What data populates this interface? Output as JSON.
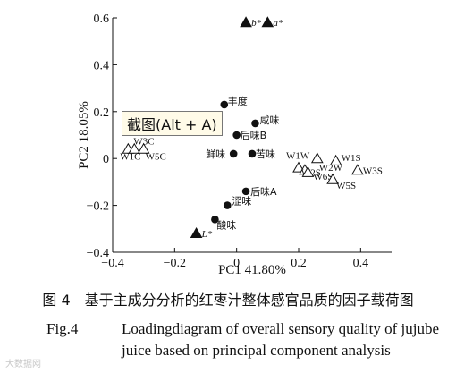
{
  "chart_data": {
    "type": "scatter",
    "title": "",
    "xlabel": "PC1 41.80%",
    "ylabel": "PC2 18.05%",
    "xlim": [
      -0.4,
      0.5
    ],
    "ylim": [
      -0.4,
      0.6
    ],
    "xticks": [
      -0.4,
      -0.2,
      0,
      0.2,
      0.4
    ],
    "xtick_labels": [
      "−0.4",
      "−0.2",
      "0",
      "0.2",
      "0.4"
    ],
    "yticks": [
      -0.4,
      -0.2,
      0,
      0.2,
      0.4,
      0.6
    ],
    "ytick_labels": [
      "−0.4",
      "−0.2",
      "0",
      "0.2",
      "0.4",
      "0.6"
    ],
    "grid": false,
    "series": [
      {
        "marker": "filled-triangle",
        "points": [
          {
            "label": "b*",
            "x": 0.03,
            "y": 0.58
          },
          {
            "label": "a*",
            "x": 0.1,
            "y": 0.58
          },
          {
            "label": "L*",
            "x": -0.13,
            "y": -0.32
          }
        ]
      },
      {
        "marker": "filled-circle",
        "points": [
          {
            "label": "丰度",
            "x": -0.04,
            "y": 0.23
          },
          {
            "label": "咸味",
            "x": 0.06,
            "y": 0.15
          },
          {
            "label": "后味B",
            "x": 0.0,
            "y": 0.1
          },
          {
            "label": "鲜味",
            "x": -0.01,
            "y": 0.02
          },
          {
            "label": "苦味",
            "x": 0.05,
            "y": 0.02
          },
          {
            "label": "后味A",
            "x": 0.03,
            "y": -0.14
          },
          {
            "label": "涩味",
            "x": -0.03,
            "y": -0.2
          },
          {
            "label": "酸味",
            "x": -0.07,
            "y": -0.26
          }
        ]
      },
      {
        "marker": "open-triangle",
        "points": [
          {
            "label": "W3C",
            "x": -0.35,
            "y": 0.04
          },
          {
            "label": "W1C",
            "x": -0.33,
            "y": 0.04
          },
          {
            "label": "W5C",
            "x": -0.3,
            "y": 0.04
          },
          {
            "label": "W1W",
            "x": 0.2,
            "y": -0.04
          },
          {
            "label": "W2S",
            "x": 0.22,
            "y": -0.05
          },
          {
            "label": "W6S",
            "x": 0.23,
            "y": -0.06
          },
          {
            "label": "W2W",
            "x": 0.26,
            "y": 0.0
          },
          {
            "label": "W1S",
            "x": 0.32,
            "y": -0.01
          },
          {
            "label": "W3S",
            "x": 0.39,
            "y": -0.05
          },
          {
            "label": "W5S",
            "x": 0.31,
            "y": -0.09
          }
        ]
      }
    ]
  },
  "caption": {
    "cn": "图 4　基于主成分分析的红枣汁整体感官品质的因子载荷图",
    "en_fig": "Fig.4",
    "en_line1": "Loadingdiagram of overall sensory quality of jujube",
    "en_line2": "juice based on principal component analysis"
  },
  "overlay": {
    "screenshot_tooltip": "截图(Alt + A)",
    "watermark": "大数据网"
  }
}
